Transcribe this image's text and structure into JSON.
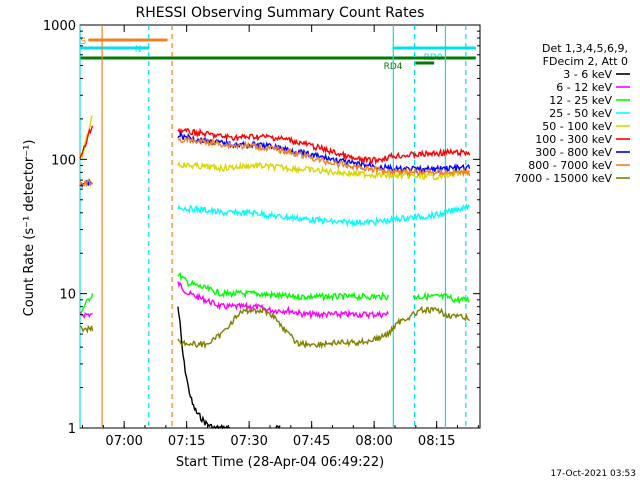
{
  "chart_data": {
    "type": "line",
    "title": "RHESSI Observing Summary Count Rates",
    "ylabel": "Count Rate (s⁻¹ detector⁻¹)",
    "xlabel": "Start Time (28-Apr-04 06:49:22)",
    "yscale": "log",
    "ylim": [
      1,
      1000
    ],
    "xlim_minutes": [
      0,
      96
    ],
    "x_ticks": [
      {
        "t": 10.6,
        "label": "07:00"
      },
      {
        "t": 25.6,
        "label": "07:15"
      },
      {
        "t": 40.6,
        "label": "07:30"
      },
      {
        "t": 55.6,
        "label": "07:45"
      },
      {
        "t": 70.6,
        "label": "08:00"
      },
      {
        "t": 85.6,
        "label": "08:15"
      }
    ],
    "y_ticks": [
      {
        "v": 1,
        "label": "1"
      },
      {
        "v": 10,
        "label": "10"
      },
      {
        "v": 100,
        "label": "100"
      },
      {
        "v": 1000,
        "label": "1000"
      }
    ],
    "legend": {
      "header": [
        "Det 1,3,4,5,6,9,",
        "FDecim 2, Att 0"
      ],
      "placement": "right"
    },
    "flags": [
      {
        "label": "S",
        "color": "#f08020",
        "t0": 2,
        "t1": 21
      },
      {
        "label": "N",
        "color": "#00e0f0",
        "t0": 0,
        "t1": 16.5
      },
      {
        "label": "RD0",
        "color": "#00e0f0",
        "t0": 75,
        "t1": 95
      },
      {
        "label": "RD4",
        "color": "#007a00",
        "t0": 0,
        "t1": 95
      }
    ],
    "vlines": [
      {
        "t": 0,
        "color": "#00e0f0",
        "dash": false
      },
      {
        "t": 5.3,
        "color": "#f08020",
        "dash": false
      },
      {
        "t": 16.5,
        "color": "#00e0f0",
        "dash": true
      },
      {
        "t": 22.1,
        "color": "#f08020",
        "dash": true
      },
      {
        "t": 75.2,
        "color": "#00e0f0",
        "dash": false
      },
      {
        "t": 80.3,
        "color": "#00e0f0",
        "dash": true
      },
      {
        "t": 87.7,
        "color": "#00e0f0",
        "dash": false
      },
      {
        "t": 92.6,
        "color": "#00e0f0",
        "dash": true
      }
    ],
    "series": [
      {
        "name": "3 - 6 keV",
        "color": "#000000",
        "points": [
          [
            23.5,
            8
          ],
          [
            24,
            6
          ],
          [
            24.5,
            4
          ],
          [
            25,
            3
          ],
          [
            26,
            2
          ],
          [
            27,
            1.5
          ],
          [
            28,
            1.3
          ],
          [
            30,
            1.1
          ],
          [
            32,
            1.0
          ],
          [
            34,
            1.0
          ],
          [
            35,
            1.0
          ],
          [
            36,
            1.0
          ],
          [
            47,
            1.0
          ],
          [
            48,
            1.0
          ]
        ]
      },
      {
        "name": "6 - 12 keV",
        "color": "#ff00ff",
        "points": [
          [
            0,
            7
          ],
          [
            1,
            7
          ],
          [
            2,
            7
          ],
          [
            3,
            7
          ],
          [
            23.5,
            12
          ],
          [
            26,
            10
          ],
          [
            30,
            9
          ],
          [
            34,
            8
          ],
          [
            38,
            8
          ],
          [
            42,
            8
          ],
          [
            46,
            7.5
          ],
          [
            50,
            7.5
          ],
          [
            54,
            7
          ],
          [
            58,
            7
          ],
          [
            62,
            7
          ],
          [
            66,
            7
          ],
          [
            70,
            7
          ],
          [
            74,
            7
          ]
        ]
      },
      {
        "name": "12 - 25 keV",
        "color": "#00ff00",
        "points": [
          [
            0,
            7
          ],
          [
            1,
            8
          ],
          [
            2,
            9
          ],
          [
            3,
            10
          ],
          [
            23.5,
            14
          ],
          [
            26,
            12
          ],
          [
            30,
            11
          ],
          [
            34,
            10
          ],
          [
            38,
            10
          ],
          [
            42,
            10
          ],
          [
            46,
            9.8
          ],
          [
            50,
            9.5
          ],
          [
            54,
            9.5
          ],
          [
            58,
            9.5
          ],
          [
            62,
            9.5
          ],
          [
            66,
            9.5
          ],
          [
            70,
            9.5
          ],
          [
            74,
            9.5
          ],
          [
            80,
            9.5
          ],
          [
            84,
            9.5
          ],
          [
            87,
            9.5
          ],
          [
            88,
            9.5
          ],
          [
            90,
            9
          ],
          [
            92,
            9
          ],
          [
            93.5,
            9
          ]
        ]
      },
      {
        "name": "25 - 50 keV",
        "color": "#00ffff",
        "points": [
          [
            23.5,
            44
          ],
          [
            26,
            43
          ],
          [
            30,
            42
          ],
          [
            34,
            40
          ],
          [
            38,
            40
          ],
          [
            42,
            40
          ],
          [
            46,
            38
          ],
          [
            50,
            37
          ],
          [
            54,
            36
          ],
          [
            58,
            35
          ],
          [
            62,
            34
          ],
          [
            66,
            34
          ],
          [
            70,
            34
          ],
          [
            74,
            35
          ],
          [
            76,
            36
          ],
          [
            80,
            37
          ],
          [
            84,
            38
          ],
          [
            87,
            39
          ],
          [
            88,
            40
          ],
          [
            90,
            42
          ],
          [
            92,
            44
          ],
          [
            93.5,
            46
          ]
        ]
      },
      {
        "name": "50 - 100 keV",
        "color": "#d8d800",
        "points": [
          [
            0,
            100
          ],
          [
            1,
            120
          ],
          [
            2,
            160
          ],
          [
            3,
            220
          ],
          [
            23.5,
            92
          ],
          [
            26,
            90
          ],
          [
            30,
            88
          ],
          [
            34,
            86
          ],
          [
            38,
            88
          ],
          [
            42,
            90
          ],
          [
            46,
            88
          ],
          [
            50,
            86
          ],
          [
            54,
            84
          ],
          [
            58,
            82
          ],
          [
            62,
            80
          ],
          [
            66,
            78
          ],
          [
            70,
            77
          ],
          [
            74,
            76
          ],
          [
            76,
            75
          ],
          [
            80,
            75
          ],
          [
            84,
            74
          ],
          [
            87,
            75
          ],
          [
            88,
            77
          ],
          [
            90,
            78
          ],
          [
            92,
            80
          ],
          [
            93.5,
            82
          ]
        ]
      },
      {
        "name": "100 - 300 keV",
        "color": "#ff0000",
        "points": [
          [
            0,
            100
          ],
          [
            1,
            120
          ],
          [
            2,
            150
          ],
          [
            3,
            180
          ],
          [
            23.5,
            165
          ],
          [
            26,
            160
          ],
          [
            30,
            155
          ],
          [
            34,
            148
          ],
          [
            38,
            145
          ],
          [
            42,
            148
          ],
          [
            46,
            146
          ],
          [
            50,
            140
          ],
          [
            54,
            130
          ],
          [
            58,
            120
          ],
          [
            62,
            110
          ],
          [
            66,
            100
          ],
          [
            70,
            98
          ],
          [
            72,
            100
          ],
          [
            74,
            104
          ],
          [
            75.2,
            106
          ],
          [
            80,
            108
          ],
          [
            84,
            110
          ],
          [
            87,
            112
          ],
          [
            88,
            112
          ],
          [
            90,
            112
          ],
          [
            92,
            112
          ],
          [
            93.5,
            110
          ]
        ]
      },
      {
        "name": "300 - 800 keV",
        "color": "#0000ff",
        "points": [
          [
            0,
            65
          ],
          [
            1,
            66
          ],
          [
            2,
            66
          ],
          [
            3,
            67
          ],
          [
            23.5,
            150
          ],
          [
            26,
            145
          ],
          [
            30,
            138
          ],
          [
            34,
            132
          ],
          [
            38,
            128
          ],
          [
            42,
            128
          ],
          [
            46,
            125
          ],
          [
            50,
            118
          ],
          [
            54,
            110
          ],
          [
            58,
            104
          ],
          [
            62,
            98
          ],
          [
            66,
            92
          ],
          [
            70,
            90
          ],
          [
            72,
            88
          ],
          [
            74,
            86
          ],
          [
            76,
            84
          ],
          [
            80,
            84
          ],
          [
            84,
            84
          ],
          [
            87,
            85
          ],
          [
            88,
            86
          ],
          [
            90,
            86
          ],
          [
            92,
            86
          ],
          [
            93.5,
            86
          ]
        ]
      },
      {
        "name": "800 - 7000 keV",
        "color": "#f08020",
        "points": [
          [
            0,
            65
          ],
          [
            1,
            66
          ],
          [
            2,
            67
          ],
          [
            3,
            68
          ],
          [
            23.5,
            140
          ],
          [
            26,
            138
          ],
          [
            30,
            135
          ],
          [
            34,
            130
          ],
          [
            38,
            126
          ],
          [
            42,
            125
          ],
          [
            46,
            120
          ],
          [
            50,
            114
          ],
          [
            54,
            106
          ],
          [
            58,
            98
          ],
          [
            62,
            92
          ],
          [
            66,
            88
          ],
          [
            70,
            85
          ],
          [
            72,
            83
          ],
          [
            74,
            82
          ],
          [
            76,
            82
          ],
          [
            80,
            80
          ],
          [
            84,
            80
          ],
          [
            87,
            80
          ],
          [
            88,
            80
          ],
          [
            90,
            80
          ],
          [
            92,
            80
          ],
          [
            93.5,
            78
          ]
        ]
      },
      {
        "name": "7000 - 15000 keV",
        "color": "#808000",
        "points": [
          [
            0,
            5.5
          ],
          [
            1,
            5.5
          ],
          [
            2,
            5.5
          ],
          [
            3,
            5.5
          ],
          [
            23.5,
            4.5
          ],
          [
            26,
            4.2
          ],
          [
            28,
            4.2
          ],
          [
            30,
            4.2
          ],
          [
            32,
            4.5
          ],
          [
            34,
            5
          ],
          [
            36,
            6
          ],
          [
            38,
            7
          ],
          [
            40,
            7.5
          ],
          [
            42,
            7.5
          ],
          [
            44,
            7.5
          ],
          [
            46,
            7
          ],
          [
            48,
            6
          ],
          [
            50,
            5
          ],
          [
            52,
            4.3
          ],
          [
            54,
            4.2
          ],
          [
            56,
            4.2
          ],
          [
            58,
            4.2
          ],
          [
            60,
            4.3
          ],
          [
            62,
            4.3
          ],
          [
            64,
            4.3
          ],
          [
            66,
            4.3
          ],
          [
            68,
            4.4
          ],
          [
            70,
            4.5
          ],
          [
            72,
            4.7
          ],
          [
            74,
            5
          ],
          [
            76,
            6
          ],
          [
            78,
            6.5
          ],
          [
            80,
            7
          ],
          [
            82,
            7.5
          ],
          [
            84,
            7.5
          ],
          [
            86,
            7.5
          ],
          [
            87,
            7.2
          ],
          [
            88,
            7
          ],
          [
            90,
            6.8
          ],
          [
            92,
            6.6
          ],
          [
            93.5,
            6.5
          ]
        ]
      }
    ]
  },
  "footer": {
    "timestamp": "17-Oct-2021 03:53"
  }
}
